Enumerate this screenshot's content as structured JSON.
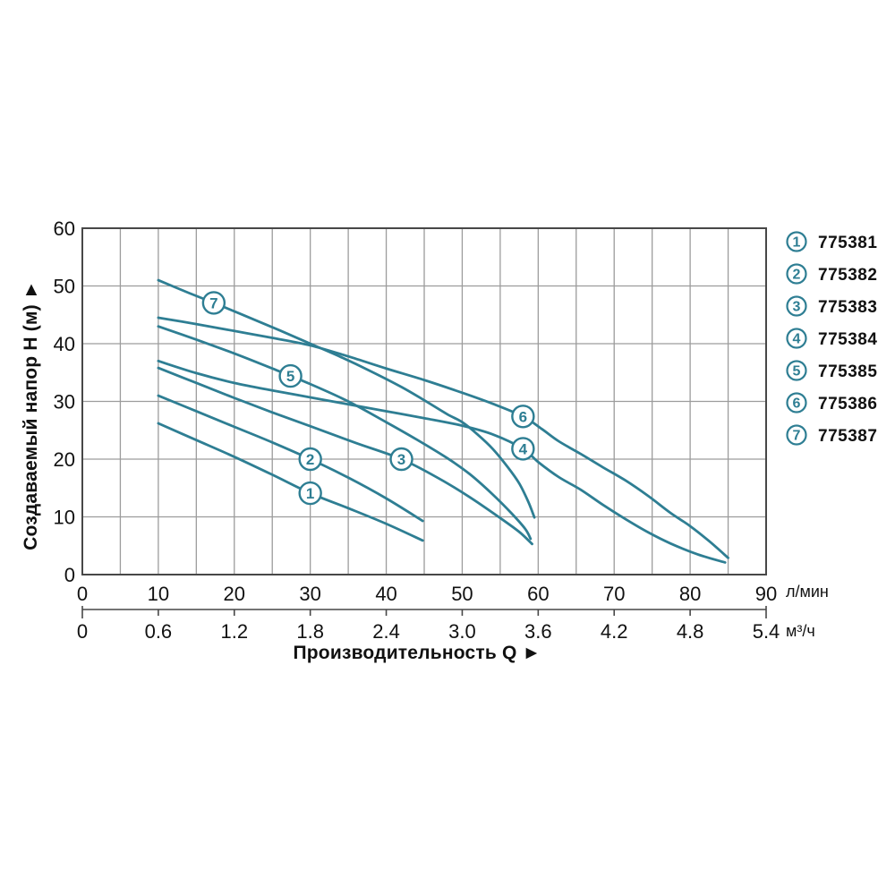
{
  "chart_data": {
    "type": "line",
    "title": "",
    "x_axis": {
      "title": "Производительность Q ►",
      "primary": {
        "unit": "л/мин",
        "ticks": [
          0,
          10,
          20,
          30,
          40,
          50,
          60,
          70,
          80,
          90
        ],
        "range": [
          0,
          90
        ],
        "grid_step": 5
      },
      "secondary": {
        "unit": "м³/ч",
        "ticks": [
          "0",
          "0.6",
          "1.2",
          "1.8",
          "2.4",
          "3.0",
          "3.6",
          "4.2",
          "4.8",
          "5.4"
        ]
      }
    },
    "y_axis": {
      "title": "Создаваемый напор Н (м) ►",
      "ticks": [
        0,
        10,
        20,
        30,
        40,
        50,
        60
      ],
      "range": [
        0,
        60
      ],
      "grid_step": 10
    },
    "legend_position": "right",
    "series": [
      {
        "num": "1",
        "model": "775381",
        "label_q": 30,
        "points_q_h": [
          [
            10,
            26.2
          ],
          [
            15,
            23.3
          ],
          [
            20,
            20.4
          ],
          [
            25,
            17.3
          ],
          [
            30,
            14.1
          ],
          [
            35,
            11.5
          ],
          [
            40,
            8.8
          ],
          [
            44.8,
            5.9
          ]
        ]
      },
      {
        "num": "2",
        "model": "775382",
        "label_q": 30,
        "points_q_h": [
          [
            10,
            31
          ],
          [
            15,
            28.3
          ],
          [
            20,
            25.6
          ],
          [
            25,
            22.9
          ],
          [
            30,
            20
          ],
          [
            35,
            16.8
          ],
          [
            40,
            13.2
          ],
          [
            44.8,
            9.3
          ]
        ]
      },
      {
        "num": "3",
        "model": "775383",
        "label_q": 42,
        "points_q_h": [
          [
            10,
            35.8
          ],
          [
            15,
            33.2
          ],
          [
            20,
            30.6
          ],
          [
            25,
            28.1
          ],
          [
            30,
            25.7
          ],
          [
            36,
            22.8
          ],
          [
            42,
            20
          ],
          [
            47,
            16.6
          ],
          [
            51,
            13.4
          ],
          [
            55,
            9.8
          ],
          [
            57.5,
            7.4
          ],
          [
            59.2,
            5.3
          ]
        ]
      },
      {
        "num": "4",
        "model": "775384",
        "label_q": 58,
        "points_q_h": [
          [
            10,
            37
          ],
          [
            15,
            34.9
          ],
          [
            20,
            33.2
          ],
          [
            25,
            31.9
          ],
          [
            30,
            30.7
          ],
          [
            35,
            29.5
          ],
          [
            40,
            28.3
          ],
          [
            45,
            27.1
          ],
          [
            50,
            25.8
          ],
          [
            54,
            24.3
          ],
          [
            58,
            21.8
          ],
          [
            60,
            19.5
          ],
          [
            62.7,
            16.9
          ],
          [
            65.6,
            14.7
          ],
          [
            68.5,
            12.1
          ],
          [
            71.5,
            9.6
          ],
          [
            74.5,
            7.3
          ],
          [
            77.4,
            5.4
          ],
          [
            81,
            3.5
          ],
          [
            84.6,
            2.1
          ]
        ]
      },
      {
        "num": "5",
        "model": "775385",
        "label_q": 27.4,
        "points_q_h": [
          [
            10,
            43
          ],
          [
            15,
            40.7
          ],
          [
            20,
            38.3
          ],
          [
            25,
            35.7
          ],
          [
            30,
            33
          ],
          [
            35,
            30
          ],
          [
            40,
            26.4
          ],
          [
            44,
            23.4
          ],
          [
            48,
            20.2
          ],
          [
            51,
            17.4
          ],
          [
            54,
            13.9
          ],
          [
            56.5,
            10.6
          ],
          [
            58.3,
            7.9
          ],
          [
            59,
            6.2
          ]
        ]
      },
      {
        "num": "6",
        "model": "775386",
        "label_q": 58,
        "points_q_h": [
          [
            10,
            44.5
          ],
          [
            15,
            43.4
          ],
          [
            20,
            42.2
          ],
          [
            25,
            41
          ],
          [
            30,
            39.7
          ],
          [
            35,
            37.8
          ],
          [
            40,
            35.7
          ],
          [
            45,
            33.7
          ],
          [
            50,
            31.5
          ],
          [
            54,
            29.6
          ],
          [
            58,
            27.4
          ],
          [
            60.5,
            25.2
          ],
          [
            62.7,
            23.1
          ],
          [
            65.6,
            20.9
          ],
          [
            68.5,
            18.6
          ],
          [
            71.5,
            16.3
          ],
          [
            74.5,
            13.6
          ],
          [
            77.4,
            10.7
          ],
          [
            80,
            8.4
          ],
          [
            82.5,
            5.8
          ],
          [
            85,
            2.9
          ]
        ]
      },
      {
        "num": "7",
        "model": "775387",
        "label_q": 17.3,
        "points_q_h": [
          [
            10,
            51
          ],
          [
            14,
            48.8
          ],
          [
            18,
            46.7
          ],
          [
            22,
            44.5
          ],
          [
            26,
            42.3
          ],
          [
            30,
            40
          ],
          [
            34,
            37.7
          ],
          [
            38,
            35.2
          ],
          [
            42,
            32.5
          ],
          [
            45,
            30.2
          ],
          [
            48,
            27.8
          ],
          [
            50,
            26.4
          ],
          [
            52,
            24.3
          ],
          [
            54,
            21.8
          ],
          [
            56,
            18.6
          ],
          [
            57.5,
            15.8
          ],
          [
            58.7,
            12.6
          ],
          [
            59.5,
            9.9
          ]
        ]
      }
    ]
  },
  "colors": {
    "curve": "#2E7E93",
    "grid": "#9C9C9C",
    "border": "#474747",
    "text": "#111111",
    "background": "#FFFFFF"
  }
}
